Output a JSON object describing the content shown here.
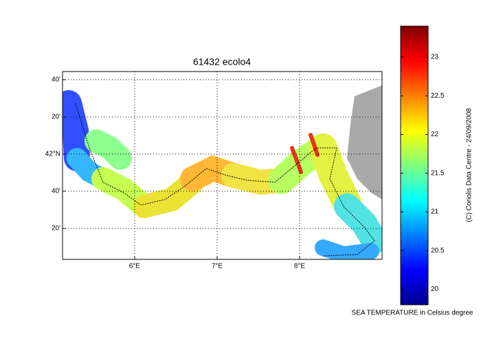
{
  "map": {
    "title": "61432 ecolo4",
    "lon_extent": [
      5.125,
      9.0
    ],
    "lat_extent": [
      41.056,
      42.74
    ],
    "lon_ticks": [
      {
        "value": 6,
        "label": "6°E"
      },
      {
        "value": 7,
        "label": "7°E"
      },
      {
        "value": 8,
        "label": "8°E"
      }
    ],
    "lat_ticks": [
      {
        "value": 41.333,
        "label": "20'"
      },
      {
        "value": 41.667,
        "label": "40'"
      },
      {
        "value": 42,
        "label": "42°N"
      },
      {
        "value": 42.333,
        "label": "20'"
      },
      {
        "value": 42.667,
        "label": "40'"
      }
    ],
    "grid": true
  },
  "colorbar": {
    "label": "SEA TEMPERATURE in Celsius degree",
    "range": [
      19.8,
      23.4
    ],
    "ticks": [
      20,
      20.5,
      21,
      21.5,
      22,
      22.5,
      23
    ]
  },
  "credit": "(C) Coriolis Data Centre - 24/09/2008"
}
